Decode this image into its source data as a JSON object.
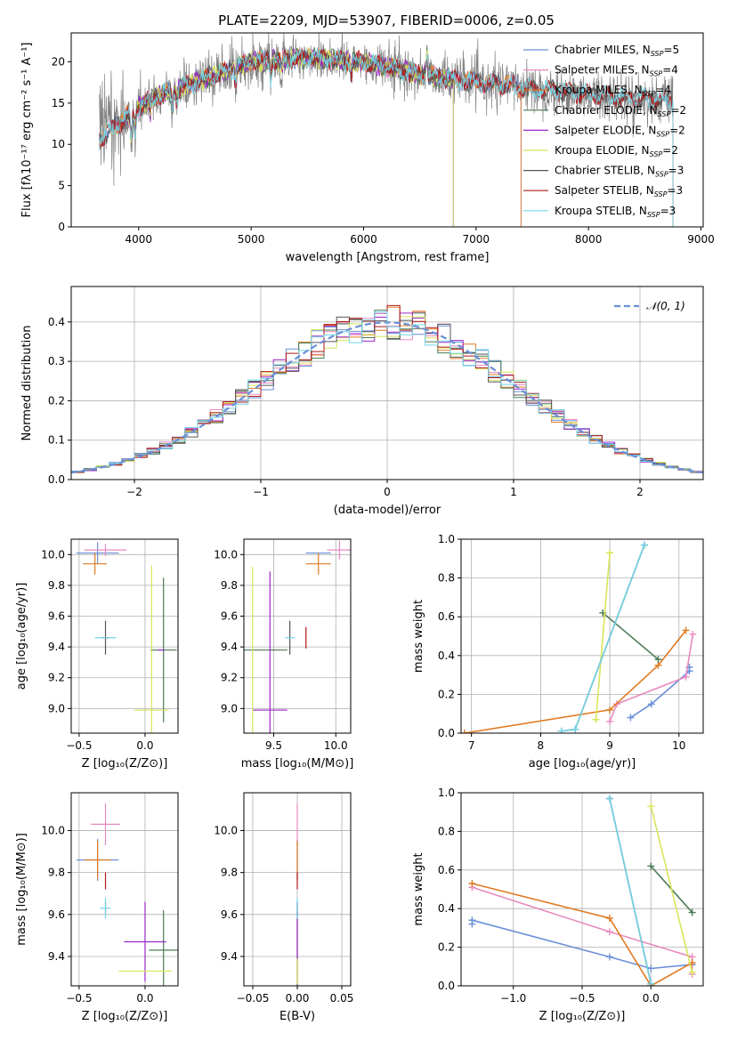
{
  "figure": {
    "title": "PLATE=2209, MJD=53907, FIBERID=0006, z=0.05"
  },
  "colors": {
    "Chabrier MILES": "#6a8fd8",
    "Salpeter MILES": "#e88ac0",
    "Kroupa MILES": "#e07b22",
    "Chabrier ELODIE": "#4a7a55",
    "Salpeter ELODIE": "#9c27c8",
    "Kroupa ELODIE": "#d8e45a",
    "Chabrier STELIB": "#555555",
    "Salpeter STELIB": "#b01818",
    "Kroupa STELIB": "#72d4e6"
  },
  "chart_data": [
    {
      "id": "spectrum",
      "type": "line",
      "title": "PLATE=2209, MJD=53907, FIBERID=0006, z=0.05",
      "xlabel": "wavelength [Angstrom, rest frame]",
      "ylabel": "Flux [fλ10⁻¹⁷ erg cm⁻² s⁻¹ A⁻¹]",
      "xlim": [
        3400,
        9020
      ],
      "ylim": [
        0,
        23.5
      ],
      "xticks": [
        4000,
        5000,
        6000,
        7000,
        8000,
        9000
      ],
      "yticks": [
        0,
        5,
        10,
        15,
        20
      ],
      "legend_position": "top-right",
      "legend": [
        {
          "label": "Chabrier MILES, N",
          "sub": "SSP",
          "suffix": "=5",
          "key": "Chabrier MILES"
        },
        {
          "label": "Salpeter MILES, N",
          "sub": "SSP",
          "suffix": "=4",
          "key": "Salpeter MILES"
        },
        {
          "label": "Kroupa MILES, N",
          "sub": "SSP",
          "suffix": "=4",
          "key": "Kroupa MILES"
        },
        {
          "label": "Chabrier ELODIE, N",
          "sub": "SSP",
          "suffix": "=2",
          "key": "Chabrier ELODIE"
        },
        {
          "label": "Salpeter ELODIE, N",
          "sub": "SSP",
          "suffix": "=2",
          "key": "Salpeter ELODIE"
        },
        {
          "label": "Kroupa ELODIE, N",
          "sub": "SSP",
          "suffix": "=2",
          "key": "Kroupa ELODIE"
        },
        {
          "label": "Chabrier STELIB, N",
          "sub": "SSP",
          "suffix": "=3",
          "key": "Chabrier STELIB"
        },
        {
          "label": "Salpeter STELIB, N",
          "sub": "SSP",
          "suffix": "=3",
          "key": "Salpeter STELIB"
        },
        {
          "label": "Kroupa STELIB, N",
          "sub": "SSP",
          "suffix": "=3",
          "key": "Kroupa STELIB"
        }
      ],
      "data_coverage": {
        "x_start": 3650,
        "x_end_spectrum": 8750
      },
      "continuum": {
        "x": [
          3650,
          3900,
          4100,
          4500,
          5000,
          5500,
          6000,
          6500,
          7000,
          7500,
          8000,
          8500,
          8750
        ],
        "y": [
          10.5,
          13.5,
          15.5,
          17.5,
          20.0,
          20.5,
          20.0,
          18.5,
          17.5,
          16.8,
          16.0,
          15.5,
          15.2
        ]
      },
      "model_ranges": [
        {
          "key": "Chabrier MILES",
          "x_start": 3650,
          "x_end": 7400
        },
        {
          "key": "Salpeter MILES",
          "x_start": 3650,
          "x_end": 7400
        },
        {
          "key": "Kroupa MILES",
          "x_start": 3650,
          "x_end": 7400
        },
        {
          "key": "Chabrier ELODIE",
          "x_start": 3900,
          "x_end": 6800
        },
        {
          "key": "Salpeter ELODIE",
          "x_start": 3900,
          "x_end": 6800
        },
        {
          "key": "Kroupa ELODIE",
          "x_start": 3900,
          "x_end": 6800
        },
        {
          "key": "Chabrier STELIB",
          "x_start": 3650,
          "x_end": 8750
        },
        {
          "key": "Salpeter STELIB",
          "x_start": 3650,
          "x_end": 8750
        },
        {
          "key": "Kroupa STELIB",
          "x_start": 3650,
          "x_end": 8750
        }
      ]
    },
    {
      "id": "residuals",
      "type": "line",
      "xlabel": "(data-model)/error",
      "ylabel": "Normed distribution",
      "xlim": [
        -2.5,
        2.5
      ],
      "ylim": [
        0,
        0.49
      ],
      "xticks": [
        -2,
        -1,
        0,
        1,
        2
      ],
      "yticks": [
        0.0,
        0.1,
        0.2,
        0.3,
        0.4
      ],
      "legend_position": "top-right",
      "legend_label": "𝒩(0, 1)",
      "bin_width": 0.1,
      "gaussian_series_key": "Chabrier MILES"
    },
    {
      "id": "age-vs-z",
      "type": "scatter",
      "xlabel": "Z [log₁₀(Z/Z⊙)]",
      "ylabel": "age  [log₁₀(age/yr)]",
      "xlim": [
        -0.56,
        0.25
      ],
      "ylim": [
        8.84,
        10.1
      ],
      "xticks": [
        -0.5,
        0.0
      ],
      "yticks": [
        9.0,
        9.2,
        9.4,
        9.6,
        9.8,
        10.0
      ],
      "points": [
        {
          "key": "Chabrier MILES",
          "x": -0.36,
          "y": 10.01,
          "xerr": 0.16,
          "yerr": 0.07
        },
        {
          "key": "Salpeter MILES",
          "x": -0.3,
          "y": 10.03,
          "xerr": 0.16,
          "yerr": 0.04
        },
        {
          "key": "Kroupa MILES",
          "x": -0.38,
          "y": 9.94,
          "xerr": 0.09,
          "yerr": 0.07
        },
        {
          "key": "Chabrier ELODIE",
          "x": 0.14,
          "y": 9.38,
          "xerr": 0.1,
          "yerr": 0.47
        },
        {
          "key": "Salpeter ELODIE",
          "x": 0.12,
          "y": 9.38,
          "xerr": 0.0,
          "yerr": 0.0
        },
        {
          "key": "Kroupa ELODIE",
          "x": 0.05,
          "y": 8.99,
          "xerr": 0.13,
          "yerr": 0.94
        },
        {
          "key": "Chabrier STELIB",
          "x": -0.3,
          "y": 9.46,
          "xerr": 0.0,
          "yerr": 0.11
        },
        {
          "key": "Salpeter STELIB",
          "x": -0.3,
          "y": 9.46,
          "xerr": 0.0,
          "yerr": 0.0
        },
        {
          "key": "Kroupa STELIB",
          "x": -0.3,
          "y": 9.46,
          "xerr": 0.08,
          "yerr": 0.0
        }
      ]
    },
    {
      "id": "age-vs-mass",
      "type": "scatter",
      "xlabel": "mass [log₁₀(M/M⊙)]",
      "ylabel": "",
      "xlim": [
        9.26,
        10.12
      ],
      "ylim": [
        8.84,
        10.1
      ],
      "xticks": [
        9.5,
        10.0
      ],
      "yticks": [
        9.0,
        9.2,
        9.4,
        9.6,
        9.8,
        10.0
      ],
      "points": [
        {
          "key": "Chabrier MILES",
          "x": 9.86,
          "y": 10.01,
          "xerr": 0.1,
          "yerr": 0.0
        },
        {
          "key": "Salpeter MILES",
          "x": 10.03,
          "y": 10.03,
          "xerr": 0.1,
          "yerr": 0.06
        },
        {
          "key": "Kroupa MILES",
          "x": 9.86,
          "y": 9.94,
          "xerr": 0.1,
          "yerr": 0.07
        },
        {
          "key": "Chabrier ELODIE",
          "x": 9.43,
          "y": 9.38,
          "xerr": 0.18,
          "yerr": 0.0
        },
        {
          "key": "Salpeter ELODIE",
          "x": 9.47,
          "y": 8.99,
          "xerr": 0.14,
          "yerr": 0.9
        },
        {
          "key": "Kroupa ELODIE",
          "x": 9.33,
          "y": 8.99,
          "xerr": 0.0,
          "yerr": 0.93
        },
        {
          "key": "Chabrier STELIB",
          "x": 9.63,
          "y": 9.46,
          "xerr": 0.0,
          "yerr": 0.11
        },
        {
          "key": "Salpeter STELIB",
          "x": 9.76,
          "y": 9.46,
          "xerr": 0.0,
          "yerr": 0.07
        },
        {
          "key": "Kroupa STELIB",
          "x": 9.63,
          "y": 9.46,
          "xerr": 0.04,
          "yerr": 0.0
        }
      ]
    },
    {
      "id": "weight-vs-age",
      "type": "line",
      "xlabel": "age  [log₁₀(age/yr)]",
      "ylabel": "mass weight",
      "xlim": [
        6.85,
        10.35
      ],
      "ylim": [
        0,
        1.0
      ],
      "xticks": [
        7,
        8,
        9,
        10
      ],
      "yticks": [
        0.0,
        0.2,
        0.4,
        0.6,
        0.8,
        1.0
      ],
      "series": [
        {
          "key": "Chabrier MILES",
          "x": [
            9.3,
            9.6,
            10.15,
            10.15
          ],
          "y": [
            0.08,
            0.15,
            0.32,
            0.34
          ]
        },
        {
          "key": "Salpeter MILES",
          "x": [
            9.0,
            9.1,
            10.1,
            10.2
          ],
          "y": [
            0.06,
            0.15,
            0.29,
            0.51
          ]
        },
        {
          "key": "Kroupa MILES",
          "x": [
            6.9,
            9.0,
            9.7,
            10.1
          ],
          "y": [
            0.0,
            0.12,
            0.35,
            0.53
          ]
        },
        {
          "key": "Chabrier ELODIE",
          "x": [
            8.9,
            9.7
          ],
          "y": [
            0.62,
            0.38
          ]
        },
        {
          "key": "Salpeter ELODIE",
          "x": [],
          "y": []
        },
        {
          "key": "Kroupa ELODIE",
          "x": [
            8.8,
            9.0
          ],
          "y": [
            0.07,
            0.93
          ]
        },
        {
          "key": "Chabrier STELIB",
          "x": [
            8.3,
            8.5,
            9.5
          ],
          "y": [
            0.01,
            0.02,
            0.97
          ]
        },
        {
          "key": "Salpeter STELIB",
          "x": [],
          "y": []
        },
        {
          "key": "Kroupa STELIB",
          "x": [
            8.3,
            8.5,
            9.5
          ],
          "y": [
            0.01,
            0.02,
            0.97
          ]
        }
      ]
    },
    {
      "id": "mass-vs-z",
      "type": "scatter",
      "xlabel": "Z [log₁₀(Z/Z⊙)]",
      "ylabel": "mass [log₁₀(M/M⊙)]",
      "xlim": [
        -0.56,
        0.25
      ],
      "ylim": [
        9.26,
        10.18
      ],
      "xticks": [
        -0.5,
        0.0
      ],
      "yticks": [
        9.4,
        9.6,
        9.8,
        10.0
      ],
      "points": [
        {
          "key": "Chabrier MILES",
          "x": -0.36,
          "y": 9.86,
          "xerr": 0.16,
          "yerr": 0.1
        },
        {
          "key": "Salpeter MILES",
          "x": -0.3,
          "y": 10.03,
          "xerr": 0.11,
          "yerr": 0.1
        },
        {
          "key": "Kroupa MILES",
          "x": -0.36,
          "y": 9.86,
          "xerr": 0.1,
          "yerr": 0.09
        },
        {
          "key": "Chabrier ELODIE",
          "x": 0.14,
          "y": 9.43,
          "xerr": 0.11,
          "yerr": 0.19
        },
        {
          "key": "Salpeter ELODIE",
          "x": 0.0,
          "y": 9.47,
          "xerr": 0.16,
          "yerr": 0.19
        },
        {
          "key": "Kroupa ELODIE",
          "x": 0.0,
          "y": 9.33,
          "xerr": 0.2,
          "yerr": 0.0
        },
        {
          "key": "Chabrier STELIB",
          "x": -0.3,
          "y": 9.63,
          "xerr": 0.0,
          "yerr": 0.03
        },
        {
          "key": "Salpeter STELIB",
          "x": -0.3,
          "y": 9.76,
          "xerr": 0.0,
          "yerr": 0.04
        },
        {
          "key": "Kroupa STELIB",
          "x": -0.3,
          "y": 9.63,
          "xerr": 0.04,
          "yerr": 0.05
        }
      ]
    },
    {
      "id": "mass-vs-ebv",
      "type": "scatter",
      "xlabel": "E(B-V)",
      "ylabel": "",
      "xlim": [
        -0.06,
        0.06
      ],
      "ylim": [
        9.26,
        10.18
      ],
      "xticks": [
        -0.05,
        0.0,
        0.05
      ],
      "yticks": [
        9.4,
        9.6,
        9.8,
        10.0
      ],
      "points": [
        {
          "key": "Chabrier MILES",
          "x": 0.0,
          "y": 9.86,
          "xerr": 0.0,
          "yerr": 0.1
        },
        {
          "key": "Salpeter MILES",
          "x": 0.0,
          "y": 10.03,
          "xerr": 0.0,
          "yerr": 0.1
        },
        {
          "key": "Kroupa MILES",
          "x": 0.0,
          "y": 9.86,
          "xerr": 0.0,
          "yerr": 0.09
        },
        {
          "key": "Chabrier ELODIE",
          "x": 0.0,
          "y": 9.43,
          "xerr": 0.0,
          "yerr": 0.19
        },
        {
          "key": "Salpeter ELODIE",
          "x": 0.0,
          "y": 9.47,
          "xerr": 0.0,
          "yerr": 0.19
        },
        {
          "key": "Kroupa ELODIE",
          "x": 0.0,
          "y": 9.33,
          "xerr": 0.0,
          "yerr": 0.06
        },
        {
          "key": "Chabrier STELIB",
          "x": 0.0,
          "y": 9.63,
          "xerr": 0.0,
          "yerr": 0.03
        },
        {
          "key": "Salpeter STELIB",
          "x": 0.0,
          "y": 9.76,
          "xerr": 0.0,
          "yerr": 0.04
        },
        {
          "key": "Kroupa STELIB",
          "x": 0.0,
          "y": 9.63,
          "xerr": 0.0,
          "yerr": 0.05
        }
      ]
    },
    {
      "id": "weight-vs-z",
      "type": "line",
      "xlabel": "Z [log₁₀(Z/Z⊙)]",
      "ylabel": "mass weight",
      "xlim": [
        -1.38,
        0.38
      ],
      "ylim": [
        0,
        1.0
      ],
      "xticks": [
        -1.0,
        -0.5,
        0.0
      ],
      "yticks": [
        0.0,
        0.2,
        0.4,
        0.6,
        0.8,
        1.0
      ],
      "series": [
        {
          "key": "Chabrier MILES",
          "x": [
            -1.3,
            -1.3,
            -0.3,
            0.0,
            0.3
          ],
          "y": [
            0.32,
            0.34,
            0.15,
            0.09,
            0.11
          ]
        },
        {
          "key": "Salpeter MILES",
          "x": [
            -1.3,
            -0.3,
            0.3,
            0.3
          ],
          "y": [
            0.51,
            0.28,
            0.15,
            0.06
          ]
        },
        {
          "key": "Kroupa MILES",
          "x": [
            -1.3,
            -0.3,
            0.0,
            0.3
          ],
          "y": [
            0.53,
            0.35,
            0.0,
            0.12
          ]
        },
        {
          "key": "Chabrier ELODIE",
          "x": [
            0.0,
            0.3
          ],
          "y": [
            0.62,
            0.38
          ]
        },
        {
          "key": "Salpeter ELODIE",
          "x": [],
          "y": []
        },
        {
          "key": "Kroupa ELODIE",
          "x": [
            0.0,
            0.3
          ],
          "y": [
            0.93,
            0.07
          ]
        },
        {
          "key": "Chabrier STELIB",
          "x": [
            -0.3,
            0.0
          ],
          "y": [
            0.97,
            0.01
          ]
        },
        {
          "key": "Salpeter STELIB",
          "x": [],
          "y": []
        },
        {
          "key": "Kroupa STELIB",
          "x": [
            -0.3,
            0.0
          ],
          "y": [
            0.97,
            0.01
          ]
        }
      ]
    }
  ]
}
